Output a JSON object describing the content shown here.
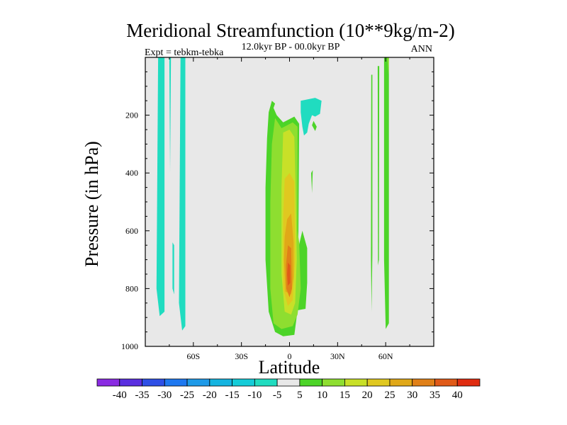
{
  "chart_data": {
    "type": "contour",
    "title": "Meridional Streamfunction (10**9kg/m-2)",
    "subtitle": "12.0kyr BP - 00.0kyr BP",
    "left_string": "Expt = tebkm-tebka",
    "right_string": "ANN",
    "xlabel": "Latitude",
    "ylabel": "Pressure (in hPa)",
    "xlim": [
      -90,
      90
    ],
    "ylim": [
      1000,
      0
    ],
    "x_ticks": [
      {
        "value": -60,
        "label": "60S"
      },
      {
        "value": -30,
        "label": "30S"
      },
      {
        "value": 0,
        "label": "0"
      },
      {
        "value": 30,
        "label": "30N"
      },
      {
        "value": 60,
        "label": "60N"
      }
    ],
    "y_ticks": [
      {
        "value": 200,
        "label": "200"
      },
      {
        "value": 400,
        "label": "400"
      },
      {
        "value": 600,
        "label": "600"
      },
      {
        "value": 800,
        "label": "800"
      },
      {
        "value": 1000,
        "label": "1000"
      }
    ],
    "colorbar": {
      "labels": [
        "-40",
        "-35",
        "-30",
        "-25",
        "-20",
        "-15",
        "-10",
        "-5",
        "5",
        "10",
        "15",
        "20",
        "25",
        "30",
        "35",
        "40"
      ],
      "colors": [
        "#8a2be2",
        "#5a2fe0",
        "#2e4fe6",
        "#1e78f0",
        "#1e9ae8",
        "#14b4e0",
        "#14ccd8",
        "#20dcc0",
        "#e8e8e8",
        "#4cd428",
        "#8ede30",
        "#c8e028",
        "#e0c820",
        "#e0a818",
        "#e08018",
        "#e05a18",
        "#e02c10"
      ]
    },
    "regions": [
      {
        "name": "sh-polar-cell",
        "fill": "#20dcc0",
        "points": [
          [
            -82,
            0
          ],
          [
            -78,
            0
          ],
          [
            -78,
            880
          ],
          [
            -81,
            895
          ],
          [
            -83,
            800
          ]
        ]
      },
      {
        "name": "sh-polar-strip",
        "fill": "#20dcc0",
        "points": [
          [
            -75,
            0
          ],
          [
            -74,
            0
          ],
          [
            -74.5,
            400
          ]
        ]
      },
      {
        "name": "sh-midlat-strip",
        "fill": "#20dcc0",
        "points": [
          [
            -68,
            0
          ],
          [
            -65,
            0
          ],
          [
            -65,
            930
          ],
          [
            -67,
            945
          ],
          [
            -69,
            850
          ]
        ]
      },
      {
        "name": "sh-small-patch",
        "fill": "#20dcc0",
        "points": [
          [
            -73,
            640
          ],
          [
            -72,
            650
          ],
          [
            -72,
            820
          ],
          [
            -73,
            800
          ]
        ]
      },
      {
        "name": "tropical-cell-outer",
        "fill": "#4cd428",
        "points": [
          [
            -13,
            190
          ],
          [
            -11,
            150
          ],
          [
            -9,
            160
          ],
          [
            -10,
            175
          ],
          [
            -8,
            200
          ],
          [
            -4,
            225
          ],
          [
            3,
            205
          ],
          [
            6,
            230
          ],
          [
            5.5,
            660
          ],
          [
            8,
            600
          ],
          [
            11,
            660
          ],
          [
            11,
            780
          ],
          [
            10,
            870
          ],
          [
            5,
            875
          ],
          [
            3,
            960
          ],
          [
            -4,
            965
          ],
          [
            -9,
            950
          ],
          [
            -13,
            880
          ],
          [
            -15,
            700
          ],
          [
            -15,
            450
          ],
          [
            -14,
            280
          ]
        ]
      },
      {
        "name": "tropical-cell-10",
        "fill": "#8ede30",
        "points": [
          [
            -9,
            210
          ],
          [
            -5,
            245
          ],
          [
            2,
            225
          ],
          [
            5,
            240
          ],
          [
            5,
            600
          ],
          [
            6,
            640
          ],
          [
            7,
            800
          ],
          [
            5,
            890
          ],
          [
            2,
            930
          ],
          [
            -5,
            940
          ],
          [
            -10,
            920
          ],
          [
            -12,
            800
          ],
          [
            -12,
            500
          ],
          [
            -11,
            300
          ]
        ]
      },
      {
        "name": "tropical-cell-15",
        "fill": "#c8e028",
        "points": [
          [
            -4,
            260
          ],
          [
            0,
            250
          ],
          [
            3,
            275
          ],
          [
            4,
            500
          ],
          [
            4.5,
            700
          ],
          [
            3.5,
            850
          ],
          [
            1,
            890
          ],
          [
            -3,
            880
          ],
          [
            -5,
            750
          ],
          [
            -5,
            450
          ]
        ]
      },
      {
        "name": "tropical-cell-20",
        "fill": "#e0c820",
        "points": [
          [
            -3,
            420
          ],
          [
            0,
            400
          ],
          [
            3,
            430
          ],
          [
            3.5,
            700
          ],
          [
            2,
            840
          ],
          [
            -1,
            860
          ],
          [
            -4,
            800
          ],
          [
            -4,
            550
          ]
        ]
      },
      {
        "name": "tropical-cell-25",
        "fill": "#e0a818",
        "points": [
          [
            -1.5,
            560
          ],
          [
            1,
            540
          ],
          [
            2.5,
            640
          ],
          [
            2.5,
            760
          ],
          [
            1,
            820
          ],
          [
            -2.5,
            810
          ],
          [
            -3.5,
            700
          ],
          [
            -3,
            620
          ]
        ]
      },
      {
        "name": "tropical-cell-30",
        "fill": "#e08018",
        "points": [
          [
            -1,
            650
          ],
          [
            1,
            660
          ],
          [
            1.5,
            800
          ],
          [
            0,
            830
          ],
          [
            -2,
            800
          ],
          [
            -2.2,
            720
          ]
        ]
      },
      {
        "name": "tropical-cell-35",
        "fill": "#e05a18",
        "points": [
          [
            -1,
            710
          ],
          [
            0.5,
            720
          ],
          [
            0.5,
            780
          ],
          [
            -1,
            790
          ],
          [
            -1.5,
            750
          ]
        ]
      },
      {
        "name": "nh-upper-negative",
        "fill": "#20dcc0",
        "points": [
          [
            7,
            150
          ],
          [
            16,
            140
          ],
          [
            20,
            150
          ],
          [
            19,
            195
          ],
          [
            16,
            205
          ],
          [
            14,
            200
          ],
          [
            12,
            230
          ],
          [
            11,
            260
          ],
          [
            9,
            270
          ],
          [
            8,
            240
          ],
          [
            7,
            190
          ]
        ]
      },
      {
        "name": "nh-upper-patch",
        "fill": "#4cd428",
        "points": [
          [
            14,
            235
          ],
          [
            15,
            220
          ],
          [
            17,
            240
          ],
          [
            16,
            255
          ]
        ]
      },
      {
        "name": "nh-mid-sliver",
        "fill": "#4cd428",
        "points": [
          [
            13.5,
            400
          ],
          [
            14.5,
            390
          ],
          [
            14,
            470
          ]
        ]
      },
      {
        "name": "nh-strip-a",
        "fill": "#4cd428",
        "points": [
          [
            51,
            60
          ],
          [
            51.7,
            60
          ],
          [
            51.7,
            680
          ],
          [
            51.2,
            880
          ],
          [
            50.8,
            700
          ]
        ]
      },
      {
        "name": "nh-strip-b",
        "fill": "#4cd428",
        "points": [
          [
            55,
            30
          ],
          [
            56,
            30
          ],
          [
            55.8,
            700
          ],
          [
            55.2,
            720
          ]
        ]
      },
      {
        "name": "nh-strip-c",
        "fill": "#4cd428",
        "points": [
          [
            59,
            0
          ],
          [
            62,
            0
          ],
          [
            62,
            920
          ],
          [
            60,
            940
          ],
          [
            59,
            700
          ]
        ]
      },
      {
        "name": "nh-strip-c-core",
        "fill": "#8ede30",
        "points": [
          [
            61,
            0
          ],
          [
            62,
            0
          ],
          [
            61.8,
            60
          ]
        ]
      }
    ]
  }
}
